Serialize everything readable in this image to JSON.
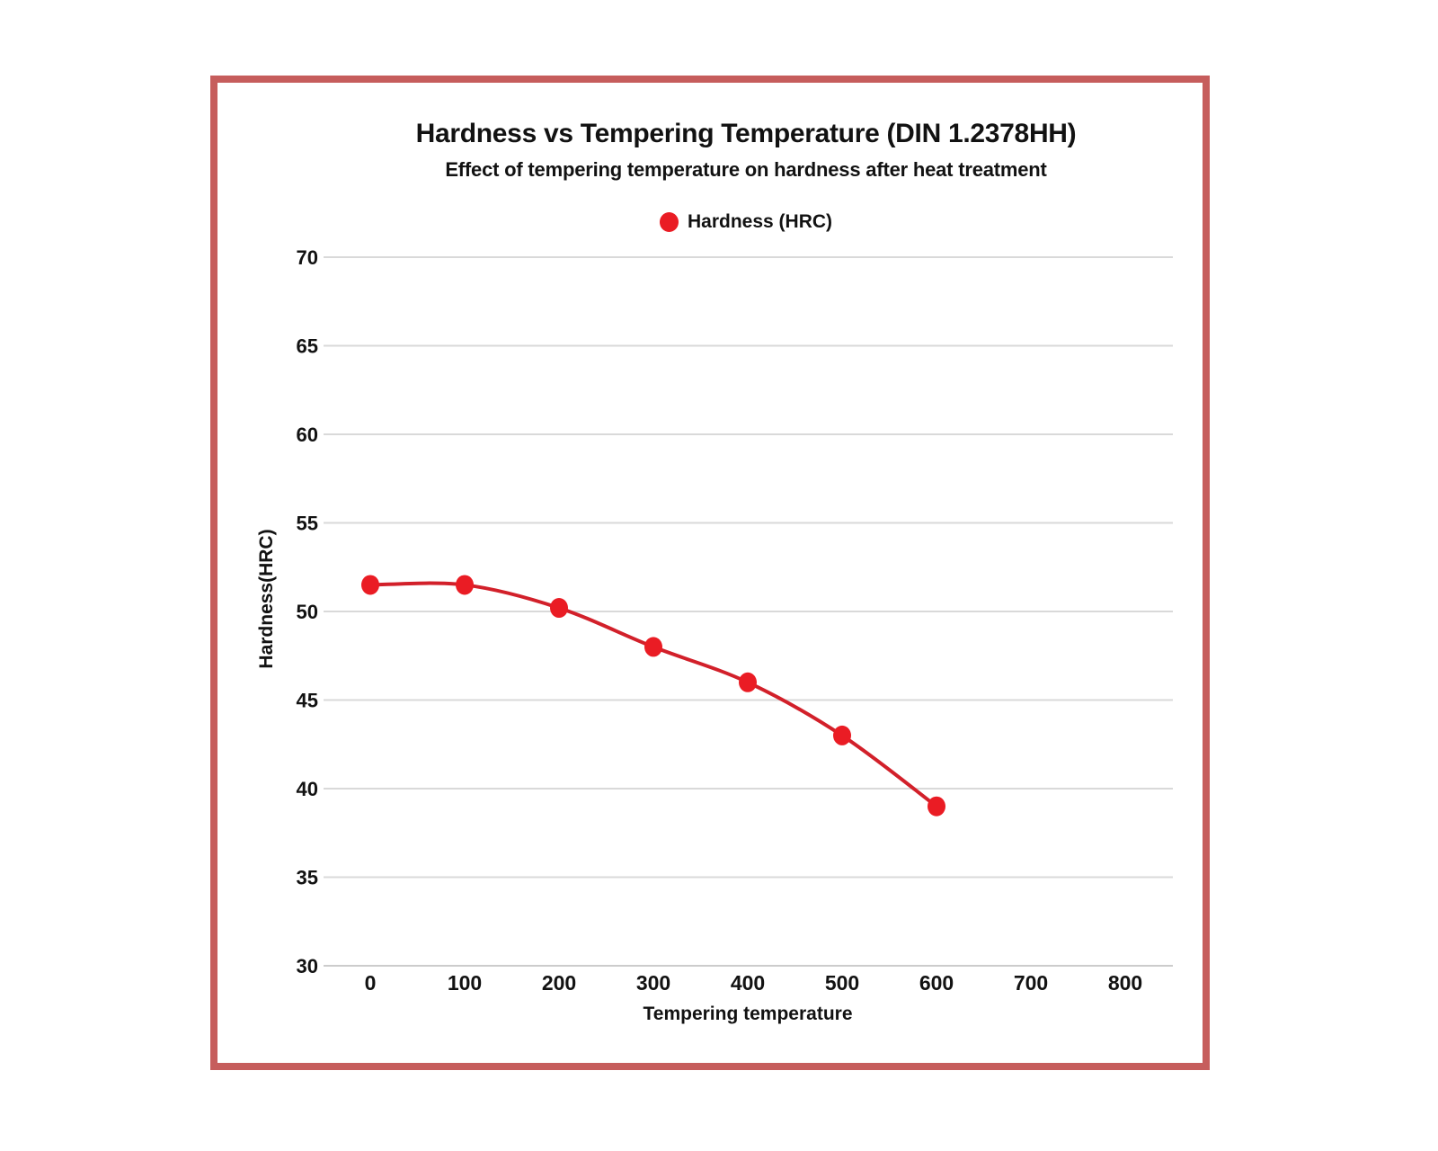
{
  "card": {
    "border_color": "#c65d5c",
    "background": "#ffffff"
  },
  "chart_data": {
    "type": "line",
    "title": "Hardness vs Tempering Temperature (DIN 1.2378HH)",
    "subtitle": "Effect of tempering temperature on hardness after heat treatment",
    "xlabel": "Tempering temperature",
    "ylabel": "Hardness(HRC)",
    "x": [
      0,
      100,
      200,
      300,
      400,
      500,
      600
    ],
    "series": [
      {
        "name": "Hardness (HRC)",
        "values": [
          51.5,
          51.5,
          50.2,
          48,
          46,
          43,
          39
        ]
      }
    ],
    "x_ticks": [
      0,
      100,
      200,
      300,
      400,
      500,
      600,
      700,
      800
    ],
    "y_ticks": [
      30,
      35,
      40,
      45,
      50,
      55,
      60,
      65,
      70
    ],
    "xlim": [
      0,
      800
    ],
    "ylim": [
      30,
      70
    ],
    "grid": "horizontal-only",
    "legend_position": "top-center",
    "line_color": "#d2202a",
    "marker_color": "#ea1c24",
    "grid_color": "#d9d9d9",
    "axis_line_color": "#cccccc",
    "text_color": "#121212"
  }
}
